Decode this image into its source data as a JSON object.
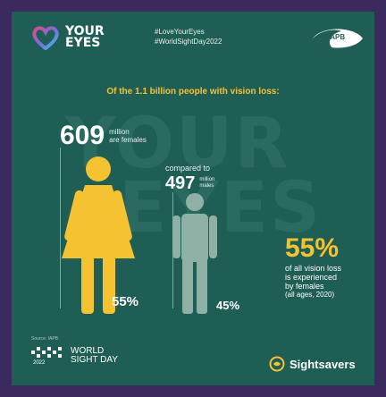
{
  "brand": {
    "logo_line1": "YOUR",
    "logo_line2": "EYES",
    "hashtag1": "#LoveYourEyes",
    "hashtag2": "#WorldSightDay2022",
    "iapb_label": "IAPB"
  },
  "watermark": {
    "line1": "YOUR",
    "line2": "EYES"
  },
  "headline": "Of the 1.1 billion people with vision loss:",
  "female": {
    "number": "609",
    "unit": "million",
    "label": "are females",
    "percent": "55%"
  },
  "male": {
    "compared": "compared to",
    "number": "497",
    "unit": "million",
    "label": "males",
    "percent": "45%"
  },
  "summary": {
    "percent": "55%",
    "line1": "of all vision loss",
    "line2": "is experienced",
    "line3": "by females",
    "note": "(all ages, 2020)"
  },
  "footer": {
    "small_text": "Source: IAPB",
    "year": "2022",
    "wsd_line1": "WORLD",
    "wsd_line2": "SIGHT DAY",
    "sightsavers": "Sightsavers"
  },
  "colors": {
    "background": "#1f5e54",
    "border": "#3b2a5e",
    "accent_yellow": "#f5c232",
    "male_figure": "#8fb0a4"
  },
  "icons": [
    "heart-logo-icon",
    "iapb-eye-icon",
    "woman-icon",
    "man-icon",
    "world-sight-day-mark",
    "sightsavers-icon"
  ]
}
